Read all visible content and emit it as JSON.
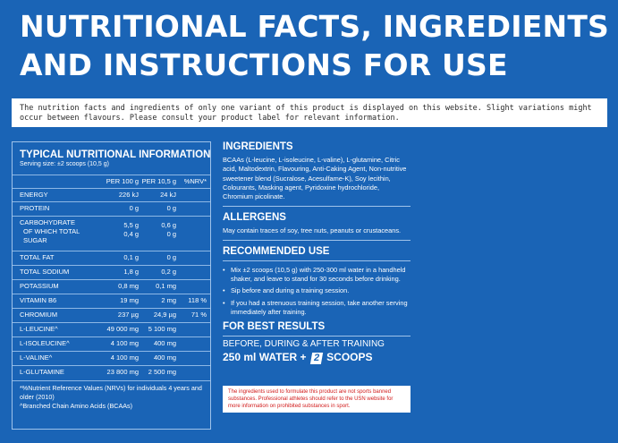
{
  "title": {
    "line1": "NUTRITIONAL FACTS, INGREDIENTS",
    "line2": "AND INSTRUCTIONS FOR USE"
  },
  "disclaimer": "The nutrition facts and ingredients of only one variant of this product is displayed on this website. Slight variations might occur between flavours. Please consult your product label for relevant information.",
  "nutrition": {
    "title": "TYPICAL NUTRITIONAL INFORMATION",
    "serving": "Serving size: ±2 scoops (10,5 g)",
    "columns": [
      "PER 100 g",
      "PER 10,5 g",
      "%NRV*"
    ],
    "rows": [
      {
        "label": "ENERGY",
        "per100": "226 kJ",
        "serving": "24 kJ",
        "nrv": ""
      },
      {
        "label": "PROTEIN",
        "per100": "0 g",
        "serving": "0 g",
        "nrv": ""
      },
      {
        "label": "CARBOHYDRATE",
        "label2": "OF WHICH TOTAL",
        "label3": "SUGAR",
        "per100": "5,5 g",
        "per100b": "0,4 g",
        "serving": "0,6 g",
        "servingb": "0 g",
        "nrv": ""
      },
      {
        "label": "TOTAL FAT",
        "per100": "0,1 g",
        "serving": "0 g",
        "nrv": ""
      },
      {
        "label": "TOTAL SODIUM",
        "per100": "1,8 g",
        "serving": "0,2 g",
        "nrv": ""
      },
      {
        "label": "POTASSIUM",
        "per100": "0,8 mg",
        "serving": "0,1 mg",
        "nrv": ""
      },
      {
        "label": "VITAMIN B6",
        "per100": "19 mg",
        "serving": "2 mg",
        "nrv": "118 %"
      },
      {
        "label": "CHROMIUM",
        "per100": "237 µg",
        "serving": "24,9 µg",
        "nrv": "71 %"
      },
      {
        "label": "L-LEUCINE^",
        "per100": "49 000 mg",
        "serving": "5 100 mg",
        "nrv": ""
      },
      {
        "label": "L-ISOLEUCINE^",
        "per100": "4 100 mg",
        "serving": "400 mg",
        "nrv": ""
      },
      {
        "label": "L-VALINE^",
        "per100": "4 100 mg",
        "serving": "400 mg",
        "nrv": ""
      },
      {
        "label": "L-GLUTAMINE",
        "per100": "23 800 mg",
        "serving": "2 500 mg",
        "nrv": ""
      }
    ],
    "footnote1": "*%Nutrient Reference Values (NRVs) for individuals 4 years and older (2010)",
    "footnote2": "^Branched Chain Amino Acids (BCAAs)"
  },
  "ingredients": {
    "title": "INGREDIENTS",
    "text": "BCAAs (L-leucine, L-isoleucine, L-valine), L-glutamine, Citric acid, Maltodextrin, Flavouring, Anti-Caking Agent, Non-nutritive sweetener blend (Sucralose, Acesulfame-K), Soy lecithin, Colourants, Masking agent, Pyridoxine hydrochloride, Chromium picolinate."
  },
  "allergens": {
    "title": "ALLERGENS",
    "text": "May contain traces of soy, tree nuts, peanuts or crustaceans."
  },
  "recommended": {
    "title": "RECOMMENDED USE",
    "bullets": [
      "Mix ±2 scoops (10,5 g) with 250-300 ml water in a handheld shaker, and leave to stand for 30 seconds before drinking.",
      "Sip before and during a training session.",
      "If you had a strenuous training session, take another serving immediately after training."
    ]
  },
  "best": {
    "title": "FOR BEST RESULTS",
    "timing": "BEFORE, DURING & AFTER TRAINING",
    "water": "250 ml WATER +",
    "scoops_count": "2",
    "scoops_label": "SCOOPS"
  },
  "warning": "The ingredients used to formulate this product are not sports banned substances. Professional athletes should refer to the USN website for more information on prohibited substances in sport."
}
